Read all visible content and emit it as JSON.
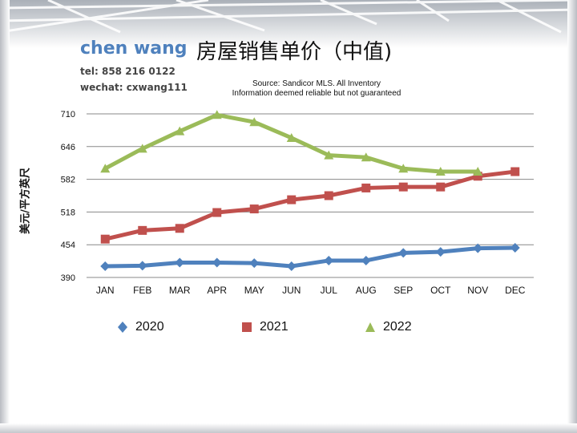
{
  "header": {
    "brand": "chen wang",
    "tel": "tel: 858 216 0122",
    "wechat": "wechat: cxwang111",
    "title": "房屋销售单价（中值)",
    "source_line1": "Source: Sandicor MLS. All Inventory",
    "source_line2": "Information deemed reliable but not guaranteed"
  },
  "colors": {
    "s2020": "#4f81bd",
    "s2021": "#c0504d",
    "s2022": "#9bbb59",
    "grid": "#888888"
  },
  "chart_data": {
    "type": "line",
    "title": "房屋销售单价（中值)",
    "xlabel": "",
    "ylabel": "美元/平方英尺",
    "categories": [
      "JAN",
      "FEB",
      "MAR",
      "APR",
      "MAY",
      "JUN",
      "JUL",
      "AUG",
      "SEP",
      "OCT",
      "NOV",
      "DEC"
    ],
    "yticks": [
      "710",
      "646",
      "582",
      "518",
      "454",
      "390"
    ],
    "ylim": [
      390,
      710
    ],
    "grid": true,
    "legend_position": "bottom",
    "series": [
      {
        "name": "2020",
        "marker": "diamond",
        "values": [
          412,
          413,
          419,
          419,
          418,
          412,
          423,
          423,
          438,
          440,
          447,
          448
        ]
      },
      {
        "name": "2021",
        "marker": "square",
        "values": [
          465,
          482,
          486,
          517,
          524,
          542,
          550,
          565,
          567,
          567,
          588,
          597
        ]
      },
      {
        "name": "2022",
        "marker": "triangle",
        "values": [
          603,
          642,
          676,
          708,
          694,
          663,
          629,
          625,
          603,
          597,
          597,
          null
        ]
      }
    ]
  }
}
